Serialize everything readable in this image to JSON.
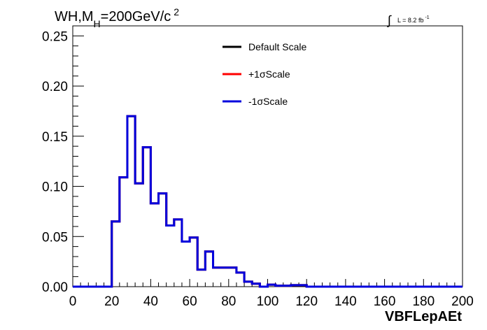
{
  "chart_data": {
    "type": "line",
    "title_main": "WH,M",
    "title_sub": "H",
    "title_rest": "=200GeV/c",
    "title_sup": "2",
    "lumi_integral": "∫",
    "lumi_text": "L = 8.2 fb",
    "lumi_sup": "-1",
    "xlabel": "VBFLepAEt",
    "xlim": [
      0,
      200
    ],
    "ylim": [
      0,
      0.26
    ],
    "x_ticks": [
      "0",
      "20",
      "40",
      "60",
      "80",
      "100",
      "120",
      "140",
      "160",
      "180",
      "200"
    ],
    "y_ticks": [
      "0.00",
      "0.05",
      "0.10",
      "0.15",
      "0.20",
      "0.25"
    ],
    "legend_placement": "top-center",
    "bin_edges": [
      0,
      4,
      8,
      12,
      16,
      20,
      24,
      28,
      32,
      36,
      40,
      44,
      48,
      52,
      56,
      60,
      64,
      68,
      72,
      76,
      80,
      84,
      88,
      92,
      96,
      100,
      104,
      108,
      112,
      116,
      120,
      124,
      128,
      132,
      136,
      140,
      144,
      148,
      152,
      156,
      160,
      164,
      168,
      172,
      176,
      180,
      184,
      188,
      192,
      196,
      200
    ],
    "series": [
      {
        "name": "Default Scale",
        "color": "#000000",
        "values": [
          0,
          0,
          0,
          0,
          0,
          0.065,
          0.109,
          0.17,
          0.103,
          0.139,
          0.083,
          0.093,
          0.061,
          0.067,
          0.045,
          0.049,
          0.017,
          0.035,
          0.019,
          0.019,
          0.019,
          0.014,
          0.005,
          0.003,
          0.0,
          0.002,
          0.001,
          0.001,
          0.0015,
          0.0015,
          0,
          0,
          0,
          0,
          0,
          0,
          0,
          0,
          0,
          0,
          0,
          0,
          0,
          0,
          0,
          0,
          0,
          0,
          0,
          0
        ]
      },
      {
        "name": "+1σScale",
        "color": "#ff0000",
        "values": [
          0,
          0,
          0,
          0,
          0,
          0.065,
          0.109,
          0.17,
          0.103,
          0.139,
          0.083,
          0.093,
          0.061,
          0.067,
          0.045,
          0.049,
          0.017,
          0.035,
          0.019,
          0.019,
          0.019,
          0.014,
          0.005,
          0.003,
          0.0,
          0.002,
          0.001,
          0.001,
          0.0015,
          0.0015,
          0,
          0,
          0,
          0,
          0,
          0,
          0,
          0,
          0,
          0,
          0,
          0,
          0,
          0,
          0,
          0,
          0,
          0,
          0,
          0
        ]
      },
      {
        "name": "-1σScale",
        "color": "#0000dd",
        "values": [
          0,
          0,
          0,
          0,
          0,
          0.065,
          0.109,
          0.17,
          0.103,
          0.139,
          0.083,
          0.093,
          0.061,
          0.067,
          0.045,
          0.049,
          0.017,
          0.035,
          0.019,
          0.019,
          0.019,
          0.014,
          0.005,
          0.003,
          0.0,
          0.002,
          0.001,
          0.001,
          0.0015,
          0.0015,
          0,
          0,
          0,
          0,
          0,
          0,
          0,
          0,
          0,
          0,
          0,
          0,
          0,
          0,
          0,
          0,
          0,
          0,
          0,
          0
        ]
      }
    ]
  }
}
